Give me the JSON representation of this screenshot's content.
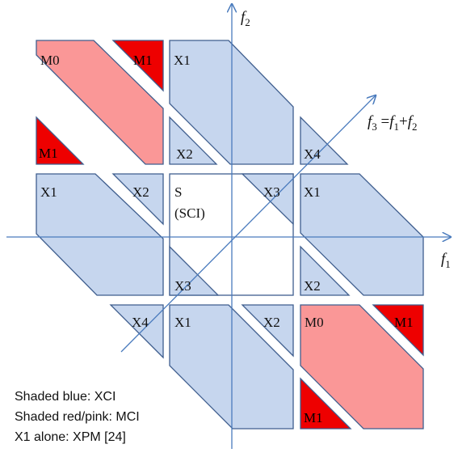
{
  "colors": {
    "blue_fill": "#c6d6ee",
    "blue_stroke": "#3f5e8e",
    "pink_fill": "#fa9797",
    "red_fill": "#ee0000",
    "axis": "#4a7bbd"
  },
  "axes": {
    "f1": {
      "symbol": "f",
      "sub": "1"
    },
    "f2": {
      "symbol": "f",
      "sub": "2"
    },
    "f3": {
      "symbol": "f",
      "sub": "3",
      "eq": " =",
      "term1": "f",
      "term1_sub": "1",
      "plus": "+",
      "term2": "f",
      "term2_sub": "2"
    }
  },
  "labels": {
    "m0": "M0",
    "m1": "M1",
    "x1": "X1",
    "x2": "X2",
    "x3": "X3",
    "x4": "X4",
    "s": "S",
    "sci": "(SCI)"
  },
  "legend": {
    "line1": "Shaded blue: XCI",
    "line2": "Shaded red/pink: MCI",
    "line3": "X1 alone: XPM [24]"
  }
}
